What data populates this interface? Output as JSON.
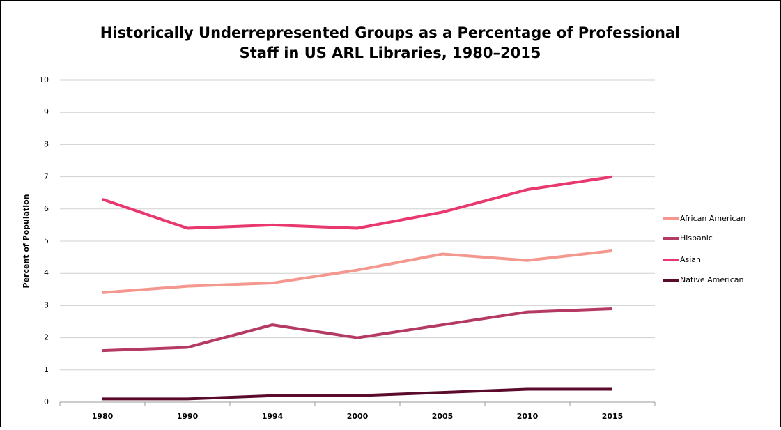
{
  "chart_data": {
    "type": "line",
    "title": [
      "Historically Underrepresented Groups as a Percentage of Professional",
      "Staff in US ARL Libraries, 1980–2015"
    ],
    "y_label": "Percent of Population",
    "categories": [
      "1980",
      "1990",
      "1994",
      "2000",
      "2005",
      "2010",
      "2015"
    ],
    "series": [
      {
        "name": "African American",
        "color": "#f4978e",
        "values": [
          3.4,
          3.6,
          3.7,
          4.1,
          4.6,
          4.4,
          4.7
        ]
      },
      {
        "name": "Hispanic",
        "color": "#b53a62",
        "values": [
          1.6,
          1.7,
          2.4,
          2.0,
          2.4,
          2.8,
          2.9
        ]
      },
      {
        "name": "Asian",
        "color": "#e8386e",
        "values": [
          6.3,
          5.4,
          5.5,
          5.4,
          5.9,
          6.6,
          7.0
        ]
      },
      {
        "name": "Native American",
        "color": "#5a0a2b",
        "values": [
          0.1,
          0.1,
          0.2,
          0.2,
          0.3,
          0.4,
          0.4
        ]
      }
    ],
    "ylim": [
      0,
      10
    ],
    "yticks": [
      0,
      1,
      2,
      3,
      4,
      5,
      6,
      7,
      8,
      9,
      10
    ],
    "grid": true,
    "legend": "right"
  }
}
